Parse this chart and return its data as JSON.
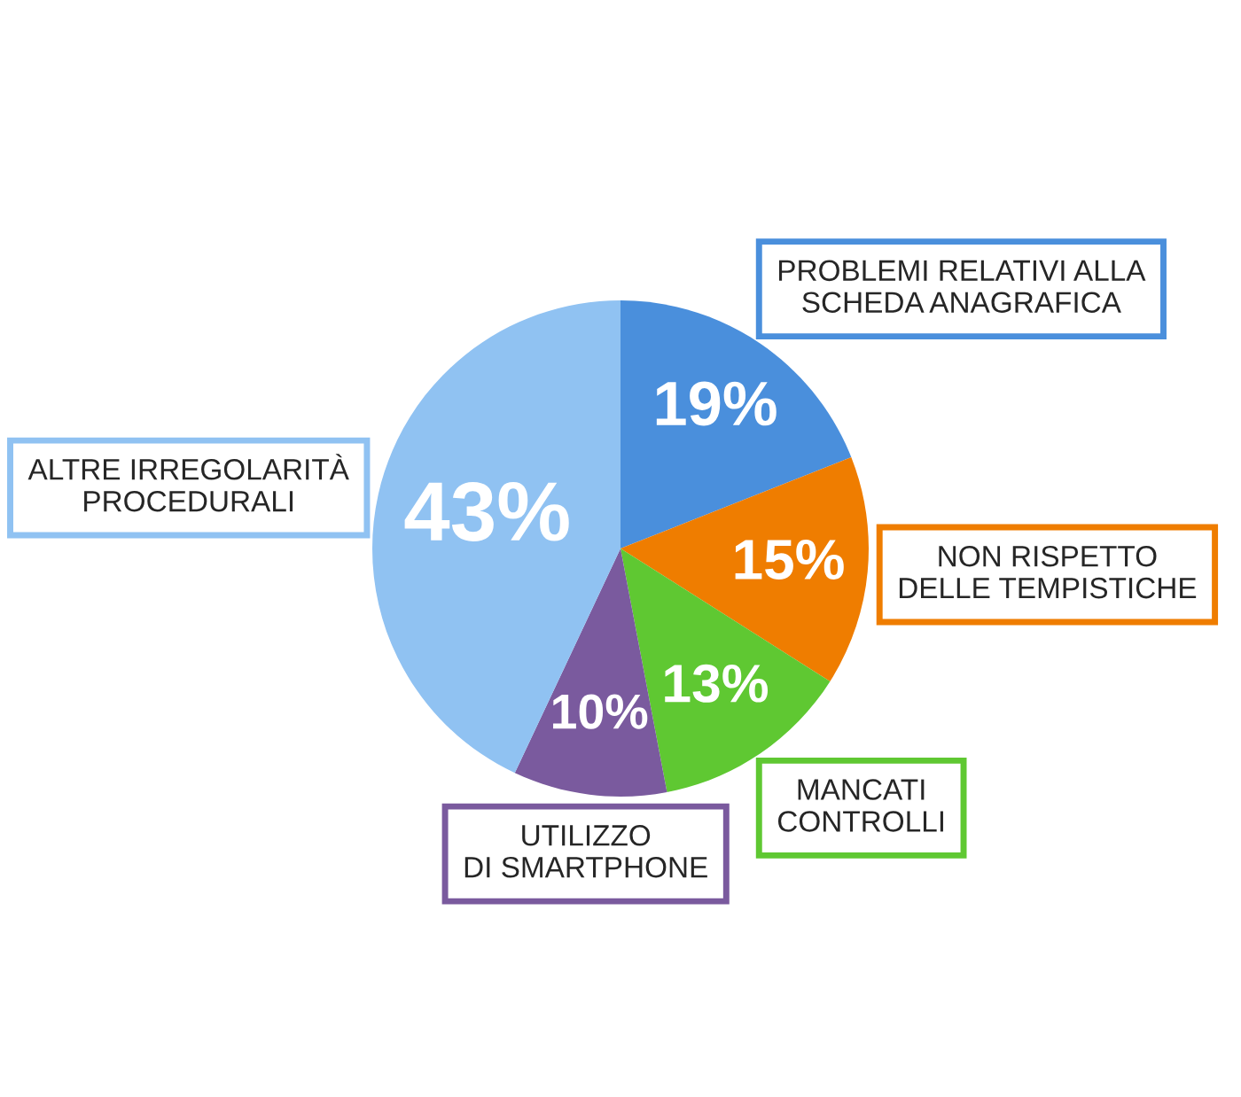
{
  "chart_data": {
    "type": "pie",
    "categories": [
      "PROBLEMI RELATIVI ALLA\nSCHEDA ANAGRAFICA",
      "NON RISPETTO\nDELLE TEMPISTICHE",
      "MANCATI\nCONTROLLI",
      "UTILIZZO\nDI SMARTPHONE",
      "ALTRE IRREGOLARITÀ\nPROCEDURALI"
    ],
    "values": [
      19,
      15,
      13,
      10,
      43
    ],
    "value_labels": [
      "19%",
      "15%",
      "13%",
      "10%",
      "43%"
    ],
    "colors": [
      "#4a8fdc",
      "#ef7d00",
      "#5fc832",
      "#7a5a9e",
      "#90c2f2"
    ],
    "legend": false
  }
}
